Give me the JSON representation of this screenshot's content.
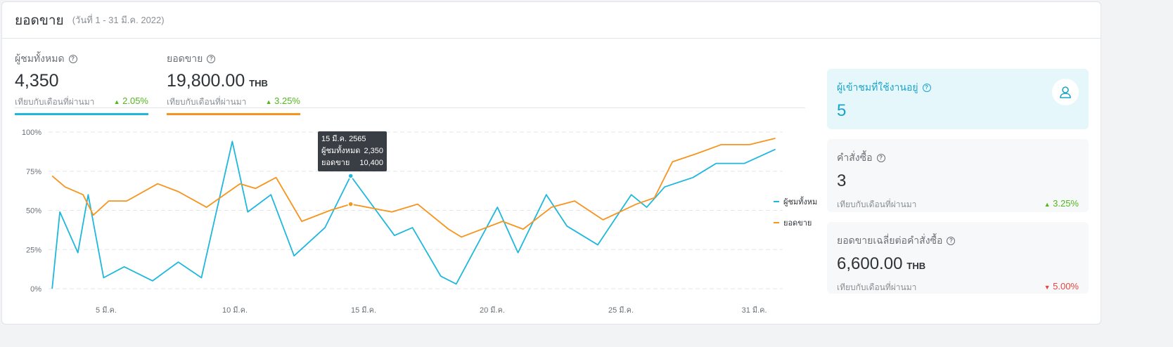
{
  "header": {
    "title": "ยอดขาย",
    "subtitle": "(วันที่ 1 - 31 มี.ค. 2022)"
  },
  "metrics": [
    {
      "label": "ผู้ชมทั้งหมด",
      "value": "4,350",
      "unit": "",
      "compare": "เทียบกับเดือนที่ผ่านมา",
      "change": "2.05%",
      "trend": "up",
      "color": "#1fb8dc"
    },
    {
      "label": "ยอดขาย",
      "value": "19,800.00",
      "unit": "THB",
      "compare": "เทียบกับเดือนที่ผ่านมา",
      "change": "3.25%",
      "trend": "up",
      "color": "#f7941d"
    }
  ],
  "side": {
    "active": {
      "label": "ผู้เข้าชมที่ใช้งานอยู่",
      "value": "5",
      "icon": "user-icon"
    },
    "orders": {
      "label": "คำสั่งซื้อ",
      "value": "3",
      "compare": "เทียบกับเดือนที่ผ่านมา",
      "change": "3.25%",
      "trend": "up"
    },
    "avg": {
      "label": "ยอดขายเฉลี่ยต่อคำสั่งซื้อ",
      "value": "6,600.00",
      "unit": "THB",
      "compare": "เทียบกับเดือนที่ผ่านมา",
      "change": "5.00%",
      "trend": "down"
    }
  },
  "tooltip": {
    "date": "15 มี.ค. 2565",
    "rows": [
      {
        "label": "ผู้ชมทั้งหมด",
        "value": "2,350"
      },
      {
        "label": "ยอดขาย",
        "value": "10,400"
      }
    ]
  },
  "chart_data": {
    "type": "line",
    "ylim": [
      0,
      100
    ],
    "yticks": [
      "0%",
      "25%",
      "50%",
      "75%",
      "100%"
    ],
    "xticks": [
      {
        "day": 5,
        "label": "5 มี.ค."
      },
      {
        "day": 10,
        "label": "10 มี.ค."
      },
      {
        "day": 15,
        "label": "15 มี.ค."
      },
      {
        "day": 20,
        "label": "20 มี.ค."
      },
      {
        "day": 25,
        "label": "25 มี.ค."
      },
      {
        "day": 31,
        "label": "31 มี.ค."
      }
    ],
    "grid": true,
    "legend": "right",
    "series": [
      {
        "name": "ผู้ชมทั้งหมด",
        "color": "#1fb8dc",
        "x": [
          2.9,
          3.2,
          3.9,
          4.3,
          4.9,
          5.7,
          6.8,
          7.8,
          8.7,
          9.9,
          10.5,
          11.4,
          12.3,
          13.5,
          14.5,
          16.2,
          16.9,
          18.0,
          18.6,
          20.2,
          21.0,
          22.1,
          22.9,
          24.1,
          25.4,
          26.0,
          26.7,
          27.8,
          28.7,
          29.8,
          31.0
        ],
        "y": [
          0,
          49,
          23,
          60,
          7,
          14,
          5,
          17,
          7,
          94,
          49,
          60,
          21,
          39,
          72,
          34,
          39,
          8,
          3,
          52,
          23,
          60,
          40,
          28,
          60,
          52,
          65,
          71,
          80,
          80,
          89
        ]
      },
      {
        "name": "ยอดขาย",
        "color": "#f7941d",
        "x": [
          2.9,
          3.4,
          4.1,
          4.5,
          5.1,
          5.8,
          7.0,
          7.8,
          8.9,
          10.2,
          10.8,
          11.6,
          12.6,
          13.7,
          14.5,
          16.1,
          17.1,
          18.3,
          18.8,
          20.4,
          21.2,
          22.3,
          23.2,
          24.3,
          25.6,
          26.3,
          27.0,
          27.9,
          28.9,
          30.0,
          31.0
        ],
        "y": [
          72,
          65,
          60,
          47,
          56,
          56,
          67,
          62,
          52,
          67,
          64,
          71,
          43,
          50,
          54,
          49,
          54,
          38,
          33,
          43,
          38,
          52,
          56,
          44,
          54,
          58,
          81,
          86,
          92,
          92,
          96
        ]
      }
    ]
  }
}
